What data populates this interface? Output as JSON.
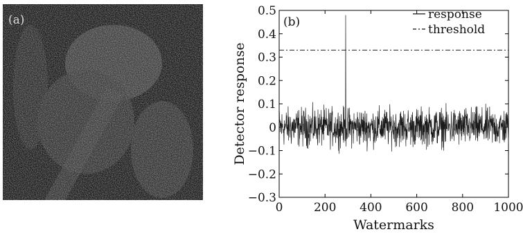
{
  "figure": {
    "panel_a_label": "(a)",
    "panel_b_label": "(b)"
  },
  "chart_data": {
    "type": "line",
    "xlabel": "Watermarks",
    "ylabel": "Detector response",
    "xlim": [
      0,
      1000
    ],
    "ylim": [
      -0.3,
      0.5
    ],
    "x_ticks": [
      0,
      200,
      400,
      600,
      800,
      1000
    ],
    "y_ticks": [
      -0.3,
      -0.2,
      -0.1,
      0,
      0.1,
      0.2,
      0.3,
      0.4,
      0.5
    ],
    "x_tick_labels": [
      "0",
      "200",
      "400",
      "600",
      "800",
      "1000"
    ],
    "y_tick_labels": [
      "−0.3",
      "−0.2",
      "−0.1",
      "0",
      "0.1",
      "0.2",
      "0.3",
      "0.4",
      "0.5"
    ],
    "grid": false,
    "legend_position": "top-right",
    "series": [
      {
        "name": "response",
        "style": "solid",
        "count": 1000,
        "range": [
          -0.2,
          0.17
        ],
        "peak": {
          "x": 290,
          "y": 0.48
        }
      },
      {
        "name": "threshold",
        "style": "dash-dot",
        "value": 0.33
      }
    ]
  }
}
